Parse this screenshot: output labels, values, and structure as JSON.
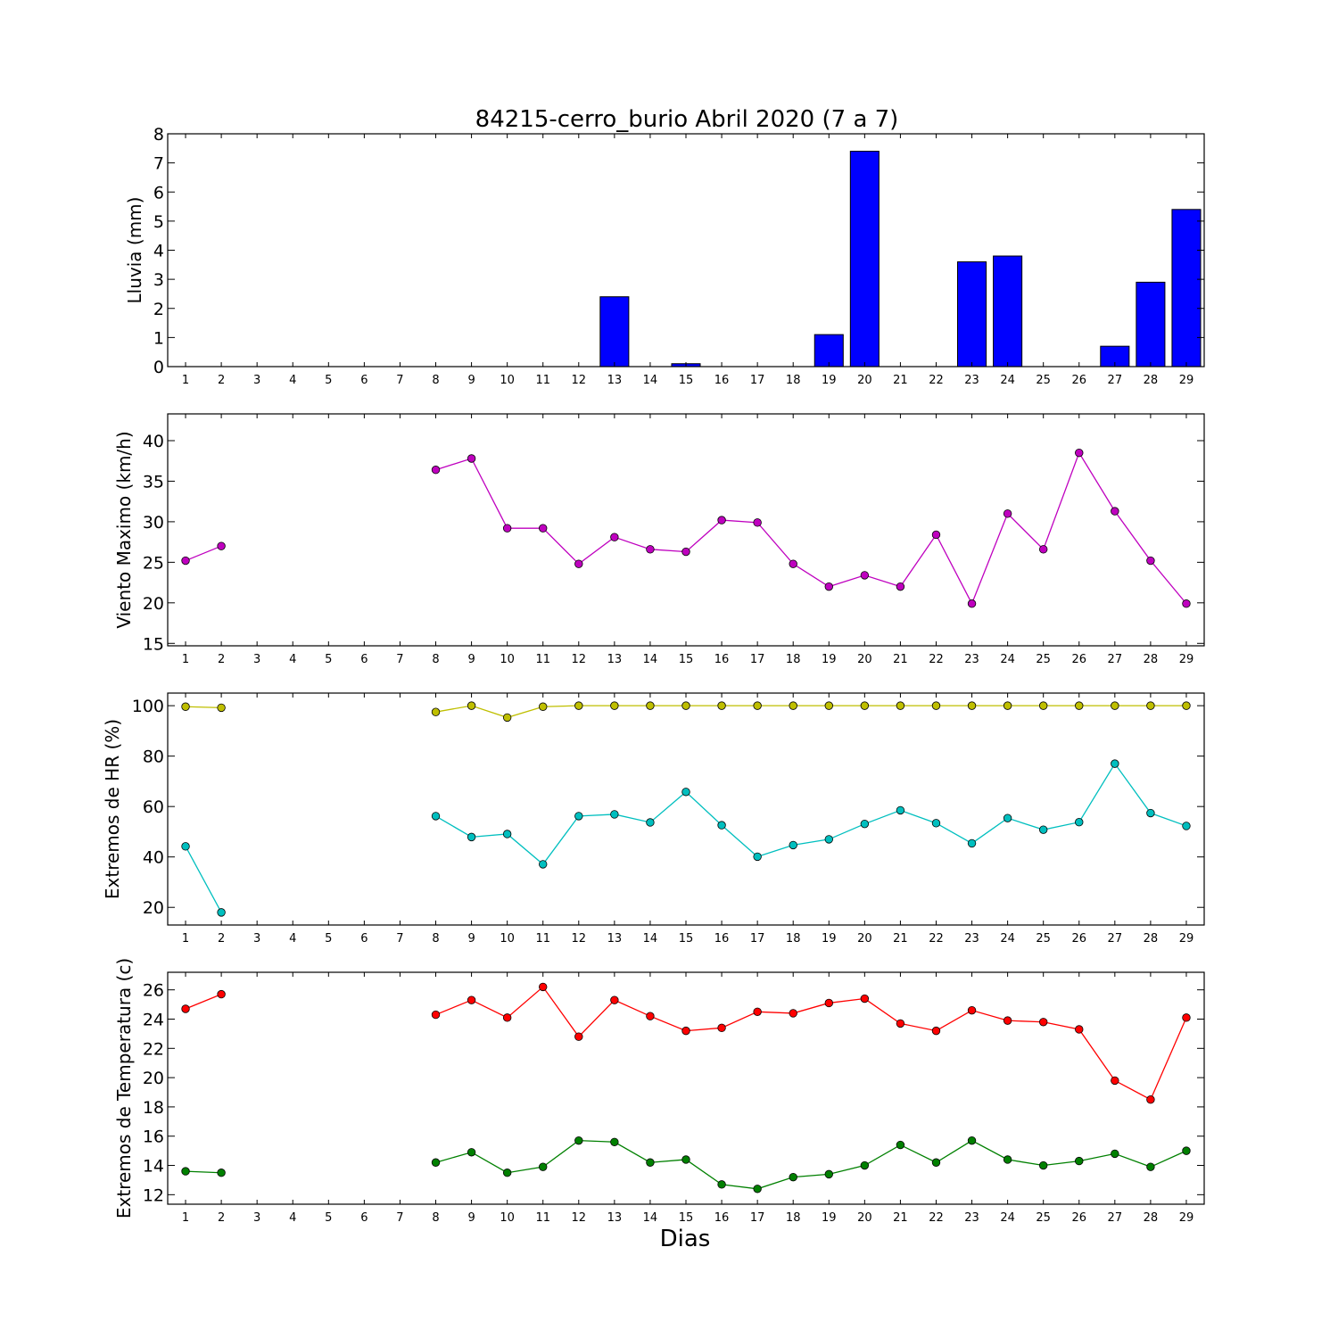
{
  "figure": {
    "title": "84215-cerro_burio Abril 2020  (7 a 7)",
    "xlabel": "Dias"
  },
  "chart_data": [
    {
      "type": "bar",
      "ylabel": "Lluvia (mm)",
      "ylim": [
        0,
        8
      ],
      "yticks": [
        0,
        1,
        2,
        3,
        4,
        5,
        6,
        7,
        8
      ],
      "categories": [
        1,
        2,
        3,
        4,
        5,
        6,
        7,
        8,
        9,
        10,
        11,
        12,
        13,
        14,
        15,
        16,
        17,
        18,
        19,
        20,
        21,
        22,
        23,
        24,
        25,
        26,
        27,
        28,
        29
      ],
      "series": [
        {
          "color": "#0000ff",
          "values": [
            0,
            0,
            0,
            0,
            0,
            0,
            0,
            0,
            0,
            0,
            0,
            0,
            2.4,
            0,
            0.1,
            0,
            0,
            0,
            1.1,
            7.4,
            0,
            0,
            3.6,
            3.8,
            0,
            0,
            0.7,
            2.9,
            5.4
          ]
        }
      ],
      "grid": false
    },
    {
      "type": "line",
      "ylabel": "Viento Maximo (km/h)",
      "ylim": [
        14.7,
        43.3
      ],
      "yticks": [
        15,
        20,
        25,
        30,
        35,
        40
      ],
      "categories": [
        1,
        2,
        3,
        4,
        5,
        6,
        7,
        8,
        9,
        10,
        11,
        12,
        13,
        14,
        15,
        16,
        17,
        18,
        19,
        20,
        21,
        22,
        23,
        24,
        25,
        26,
        27,
        28,
        29
      ],
      "series": [
        {
          "color": "#bf00bf",
          "values": [
            25.2,
            27.0,
            null,
            null,
            null,
            null,
            null,
            36.4,
            37.8,
            29.2,
            29.2,
            24.8,
            28.1,
            26.6,
            26.3,
            30.2,
            29.9,
            24.8,
            22.0,
            23.4,
            22.0,
            28.4,
            19.9,
            31.0,
            26.6,
            38.5,
            31.3,
            25.2,
            19.9
          ]
        }
      ],
      "grid": false
    },
    {
      "type": "line",
      "ylabel": "Extremos de HR (%)",
      "ylim": [
        13,
        105
      ],
      "yticks": [
        20,
        40,
        60,
        80,
        100
      ],
      "categories": [
        1,
        2,
        3,
        4,
        5,
        6,
        7,
        8,
        9,
        10,
        11,
        12,
        13,
        14,
        15,
        16,
        17,
        18,
        19,
        20,
        21,
        22,
        23,
        24,
        25,
        26,
        27,
        28,
        29
      ],
      "series": [
        {
          "color": "#bfbf00",
          "values": [
            99.6,
            99.2,
            null,
            null,
            null,
            null,
            null,
            97.5,
            100,
            95.3,
            99.6,
            100,
            100,
            100,
            100,
            100,
            100,
            100,
            100,
            100,
            100,
            100,
            100,
            100,
            100,
            100,
            100,
            100,
            100
          ]
        },
        {
          "color": "#00bfbf",
          "values": [
            44.2,
            18.0,
            null,
            null,
            null,
            null,
            null,
            56.2,
            47.9,
            49.1,
            37.1,
            56.2,
            56.9,
            53.7,
            65.8,
            52.6,
            40.1,
            44.7,
            47.0,
            53.1,
            58.5,
            53.4,
            45.4,
            55.4,
            50.8,
            53.8,
            77.0,
            57.4,
            52.3
          ]
        }
      ],
      "grid": false
    },
    {
      "type": "line",
      "ylabel": "Extremos de Temperatura (c)",
      "ylim": [
        11.35,
        27.2
      ],
      "yticks": [
        12,
        14,
        16,
        18,
        20,
        22,
        24,
        26
      ],
      "categories": [
        1,
        2,
        3,
        4,
        5,
        6,
        7,
        8,
        9,
        10,
        11,
        12,
        13,
        14,
        15,
        16,
        17,
        18,
        19,
        20,
        21,
        22,
        23,
        24,
        25,
        26,
        27,
        28,
        29
      ],
      "series": [
        {
          "color": "#ff0000",
          "values": [
            24.7,
            25.7,
            null,
            null,
            null,
            null,
            null,
            24.3,
            25.3,
            24.1,
            26.2,
            22.8,
            25.3,
            24.2,
            23.2,
            23.4,
            24.5,
            24.4,
            25.1,
            25.4,
            23.7,
            23.2,
            24.6,
            23.9,
            23.8,
            23.3,
            19.8,
            18.5,
            24.1
          ]
        },
        {
          "color": "#008000",
          "values": [
            13.6,
            13.5,
            null,
            null,
            null,
            null,
            null,
            14.2,
            14.9,
            13.5,
            13.9,
            15.7,
            15.6,
            14.2,
            14.4,
            12.7,
            12.4,
            13.2,
            13.4,
            14.0,
            15.4,
            14.2,
            15.7,
            14.4,
            14.0,
            14.3,
            14.8,
            13.9,
            15.0
          ]
        }
      ],
      "grid": false
    }
  ]
}
